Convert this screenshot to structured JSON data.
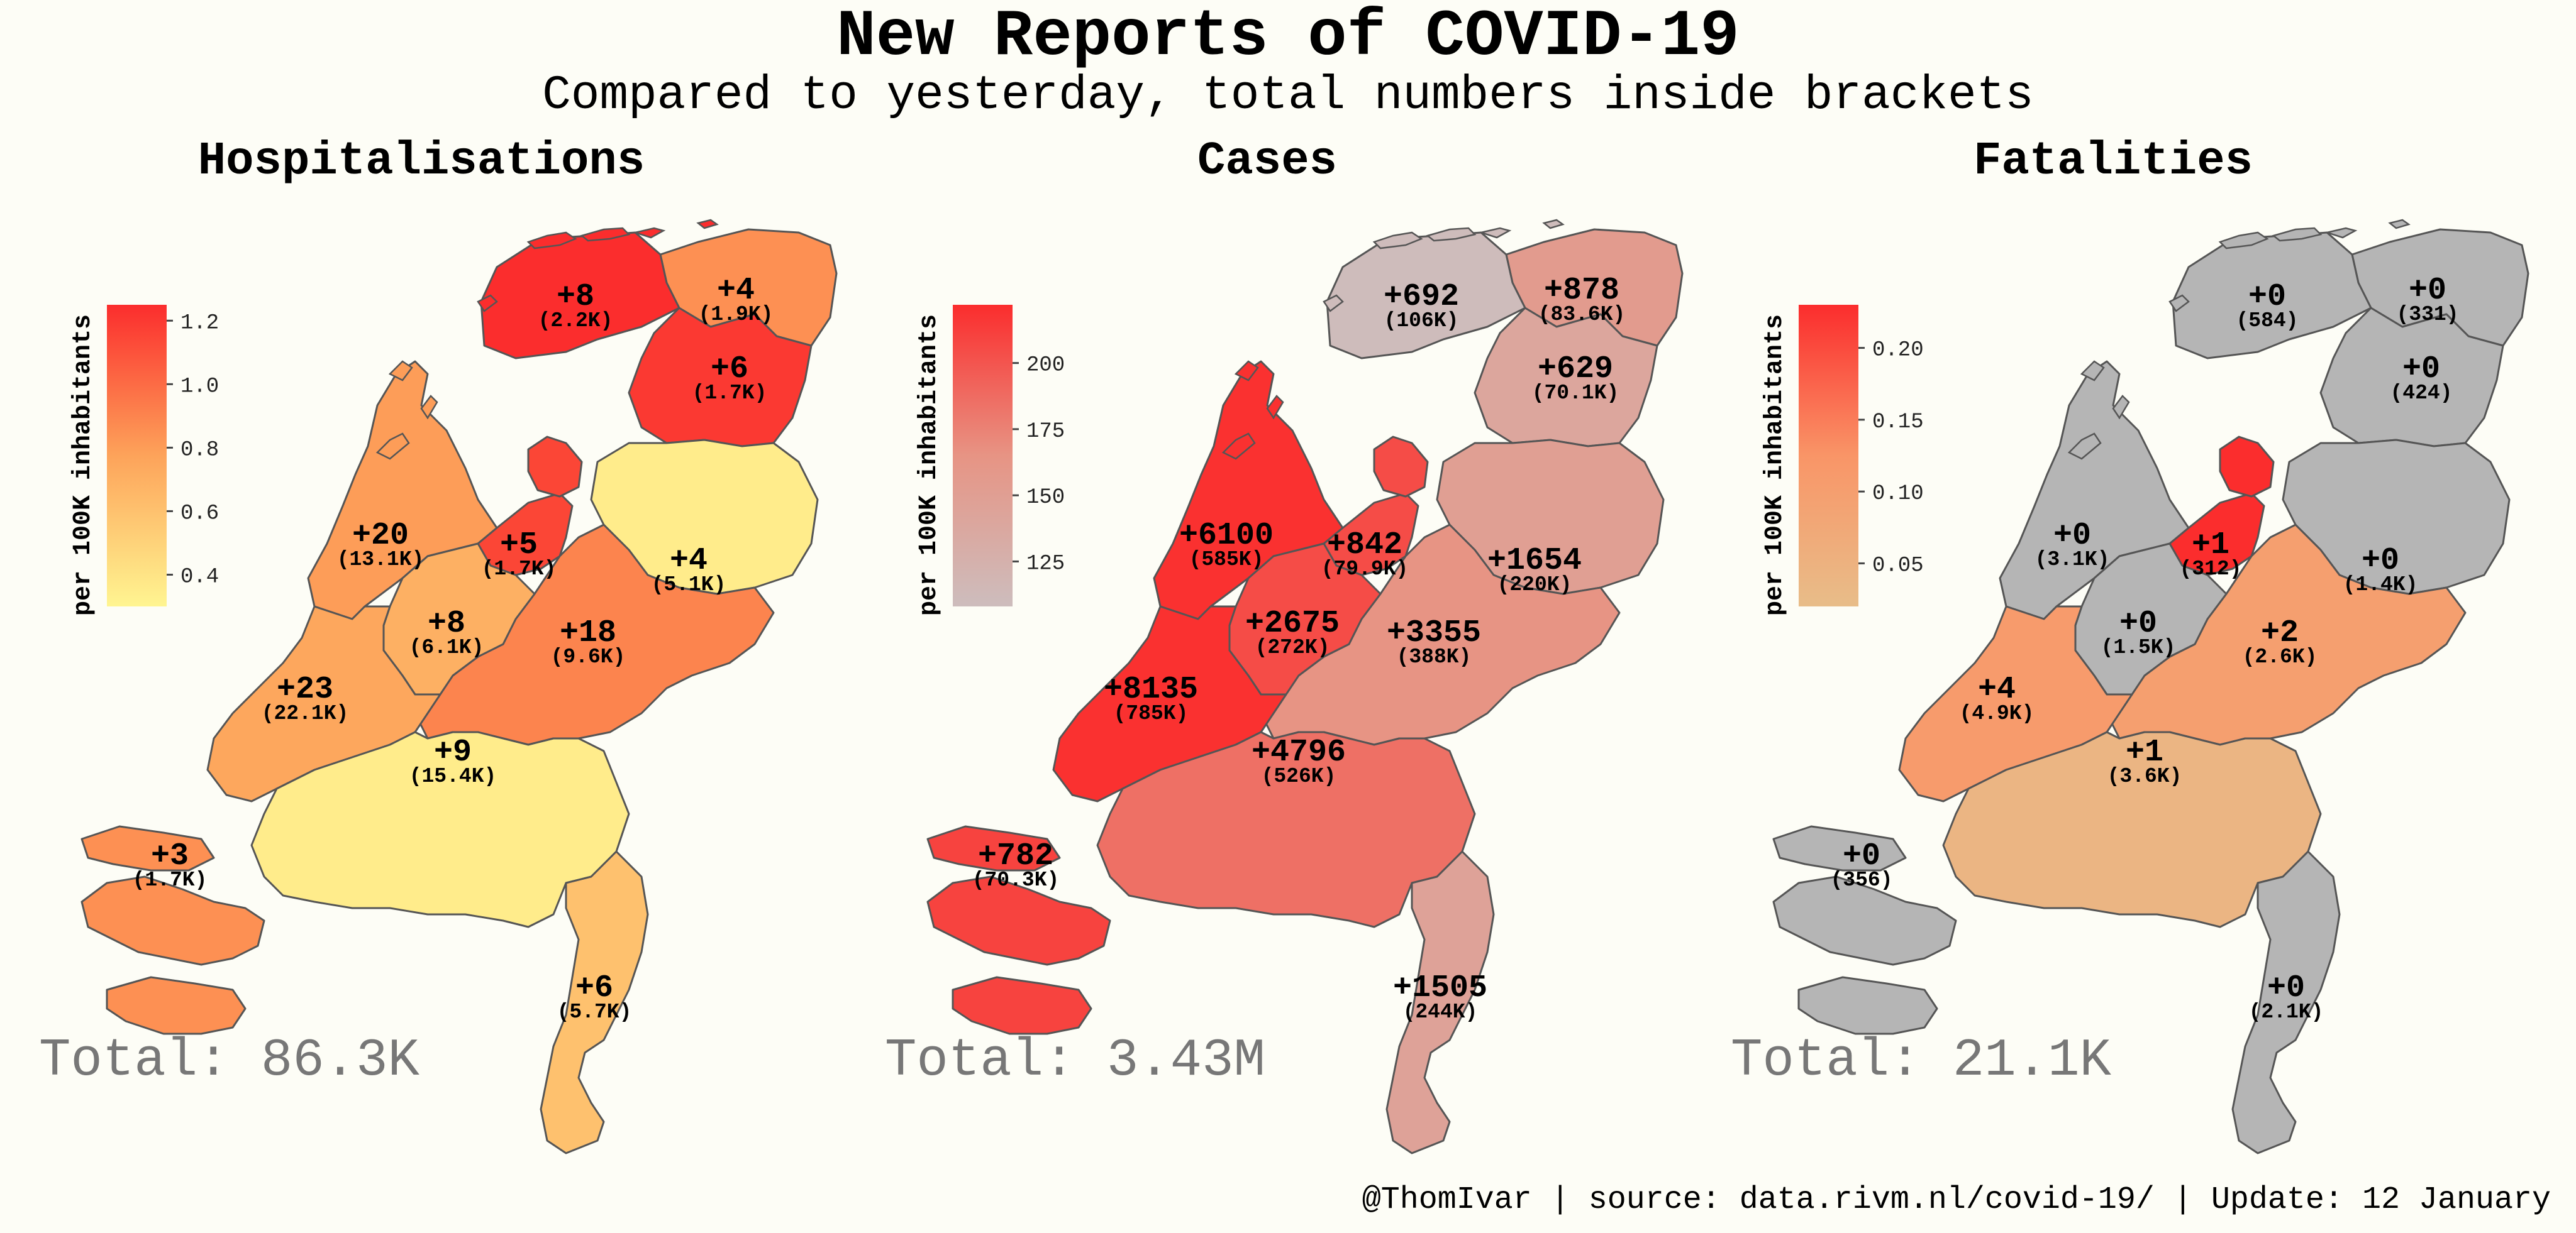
{
  "title": "New Reports of COVID-19",
  "subtitle": "Compared to yesterday, total numbers inside brackets",
  "footer": "@ThomIvar | source: data.rivm.nl/covid-19/ | Update: 12 January",
  "colorbar_label": "per 100K inhabitants",
  "chart_data": [
    {
      "type": "choropleth",
      "title": "Hospitalisations",
      "total": "Total: 86.3K",
      "colorbar": {
        "ticks": [
          "0.4",
          "0.6",
          "0.8",
          "1.0",
          "1.2"
        ],
        "min": 0.3,
        "max": 1.25,
        "low_color": "#fff591",
        "mid_color": "#fda35a",
        "high_color": "#fb2d2d"
      },
      "regions": [
        {
          "id": "groningen",
          "change": "+4",
          "total": "(1.9K)",
          "value": 0.85
        },
        {
          "id": "friesland",
          "change": "+8",
          "total": "(2.2K)",
          "value": 1.25
        },
        {
          "id": "drenthe",
          "change": "+6",
          "total": "(1.7K)",
          "value": 1.2
        },
        {
          "id": "noord-holland",
          "change": "+20",
          "total": "(13.1K)",
          "value": 0.8
        },
        {
          "id": "flevoland",
          "change": "+5",
          "total": "(1.7K)",
          "value": 1.15
        },
        {
          "id": "overijssel",
          "change": "+4",
          "total": "(5.1K)",
          "value": 0.35
        },
        {
          "id": "utrecht",
          "change": "+8",
          "total": "(6.1K)",
          "value": 0.7
        },
        {
          "id": "gelderland",
          "change": "+18",
          "total": "(9.6K)",
          "value": 0.9
        },
        {
          "id": "zuid-holland",
          "change": "+23",
          "total": "(22.1K)",
          "value": 0.75
        },
        {
          "id": "noord-brabant",
          "change": "+9",
          "total": "(15.4K)",
          "value": 0.35
        },
        {
          "id": "zeeland",
          "change": "+3",
          "total": "(1.7K)",
          "value": 0.85
        },
        {
          "id": "limburg",
          "change": "+6",
          "total": "(5.7K)",
          "value": 0.6
        }
      ]
    },
    {
      "type": "choropleth",
      "title": "Cases",
      "total": "Total: 3.43M",
      "colorbar": {
        "ticks": [
          "125",
          "150",
          "175",
          "200"
        ],
        "min": 108,
        "max": 222,
        "low_color": "#cdbdbd",
        "mid_color": "#e79484",
        "high_color": "#fb2d2d"
      },
      "regions": [
        {
          "id": "groningen",
          "change": "+878",
          "total": "(83.6K)",
          "value": 155
        },
        {
          "id": "friesland",
          "change": "+692",
          "total": "(106K)",
          "value": 110
        },
        {
          "id": "drenthe",
          "change": "+629",
          "total": "(70.1K)",
          "value": 140
        },
        {
          "id": "noord-holland",
          "change": "+6100",
          "total": "(585K)",
          "value": 220
        },
        {
          "id": "flevoland",
          "change": "+842",
          "total": "(79.9K)",
          "value": 205
        },
        {
          "id": "overijssel",
          "change": "+1654",
          "total": "(220K)",
          "value": 150
        },
        {
          "id": "utrecht",
          "change": "+2675",
          "total": "(272K)",
          "value": 205
        },
        {
          "id": "gelderland",
          "change": "+3355",
          "total": "(388K)",
          "value": 165
        },
        {
          "id": "zuid-holland",
          "change": "+8135",
          "total": "(785K)",
          "value": 220
        },
        {
          "id": "noord-brabant",
          "change": "+4796",
          "total": "(526K)",
          "value": 185
        },
        {
          "id": "zeeland",
          "change": "+782",
          "total": "(70.3K)",
          "value": 210
        },
        {
          "id": "limburg",
          "change": "+1505",
          "total": "(244K)",
          "value": 145
        }
      ]
    },
    {
      "type": "choropleth",
      "title": "Fatalities",
      "total": "Total: 21.1K",
      "colorbar": {
        "ticks": [
          "0.05",
          "0.10",
          "0.15",
          "0.20"
        ],
        "min": 0.02,
        "max": 0.23,
        "low_color": "#e8bd89",
        "mid_color": "#f99567",
        "high_color": "#fb2d2d",
        "zero_color": "#b5b5b5"
      },
      "regions": [
        {
          "id": "groningen",
          "change": "+0",
          "total": "(331)",
          "value": 0
        },
        {
          "id": "friesland",
          "change": "+0",
          "total": "(584)",
          "value": 0
        },
        {
          "id": "drenthe",
          "change": "+0",
          "total": "(424)",
          "value": 0
        },
        {
          "id": "noord-holland",
          "change": "+0",
          "total": "(3.1K)",
          "value": 0
        },
        {
          "id": "flevoland",
          "change": "+1",
          "total": "(312)",
          "value": 0.23
        },
        {
          "id": "overijssel",
          "change": "+0",
          "total": "(1.4K)",
          "value": 0
        },
        {
          "id": "utrecht",
          "change": "+0",
          "total": "(1.5K)",
          "value": 0
        },
        {
          "id": "gelderland",
          "change": "+2",
          "total": "(2.6K)",
          "value": 0.1
        },
        {
          "id": "zuid-holland",
          "change": "+4",
          "total": "(4.9K)",
          "value": 0.11
        },
        {
          "id": "noord-brabant",
          "change": "+1",
          "total": "(3.6K)",
          "value": 0.04
        },
        {
          "id": "zeeland",
          "change": "+0",
          "total": "(356)",
          "value": 0
        },
        {
          "id": "limburg",
          "change": "+0",
          "total": "(2.1K)",
          "value": 0
        }
      ]
    }
  ]
}
